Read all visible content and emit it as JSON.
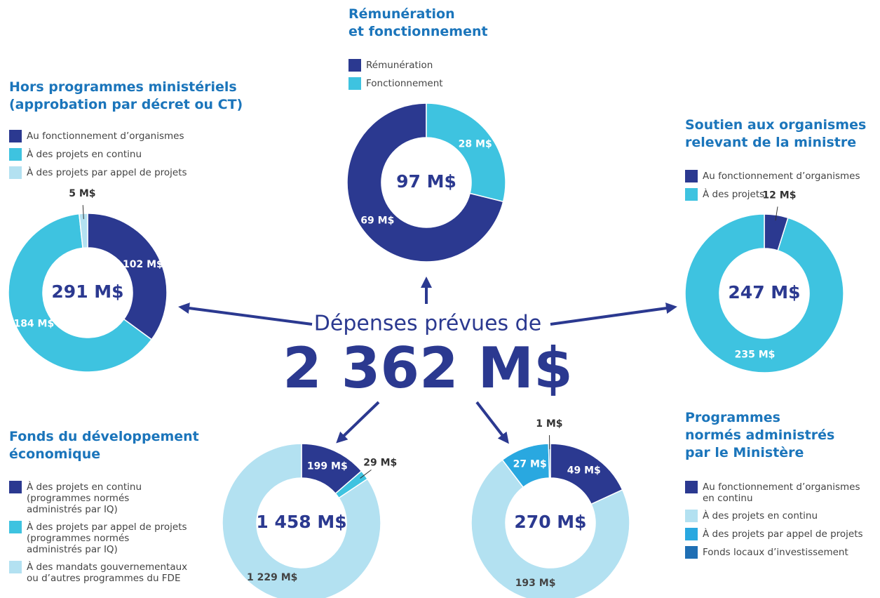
{
  "summary": {
    "label": "Dépenses prévues de",
    "total": "2 362 M$"
  },
  "chart_data": [
    {
      "type": "pie",
      "donut": true,
      "title": "Hors programmes ministériels\n(approbation par décret ou CT)",
      "center_label": "291 M$",
      "categories": [
        "Au fonctionnement d’organismes",
        "À des projets en continu",
        "À des projets par appel de projets"
      ],
      "values": [
        102,
        184,
        5
      ],
      "value_labels": [
        "102 M$",
        "184 M$",
        "5 M$"
      ],
      "colors": [
        "#2b3990",
        "#3ec3e0",
        "#b3e1f1"
      ]
    },
    {
      "type": "pie",
      "donut": true,
      "title": "Rémunération\net fonctionnement",
      "center_label": "97 M$",
      "direction": "counterclockwise",
      "categories": [
        "Rémunération",
        "Fonctionnement"
      ],
      "values": [
        69,
        28
      ],
      "value_labels": [
        "69 M$",
        "28 M$"
      ],
      "colors": [
        "#2b3990",
        "#3ec3e0"
      ]
    },
    {
      "type": "pie",
      "donut": true,
      "title": "Soutien aux organismes\nrelevant de la ministre",
      "center_label": "247 M$",
      "categories": [
        "Au fonctionnement d’organismes",
        "À des projets"
      ],
      "values": [
        12,
        235
      ],
      "value_labels": [
        "12 M$",
        "235 M$"
      ],
      "colors": [
        "#2b3990",
        "#3ec3e0"
      ]
    },
    {
      "type": "pie",
      "donut": true,
      "title": "Fonds du développement\néconomique",
      "center_label": "1 458 M$",
      "categories": [
        "À des projets en continu\n(programmes normés\nadministrés par IQ)",
        "À des projets par appel de projets\n(programmes normés\nadministrés par IQ)",
        "À des mandats gouvernementaux\nou d’autres programmes du FDE"
      ],
      "values": [
        199,
        29,
        1229
      ],
      "value_labels": [
        "199 M$",
        "29 M$",
        "1 229 M$"
      ],
      "colors": [
        "#2b3990",
        "#3ec3e0",
        "#b3e1f1"
      ]
    },
    {
      "type": "pie",
      "donut": true,
      "title": "Programmes\nnormés administrés\npar le Ministère",
      "center_label": "270 M$",
      "categories": [
        "Au fonctionnement d’organismes\nen continu",
        "À des projets en continu",
        "À des projets par appel de projets",
        "Fonds locaux d’investissement"
      ],
      "values": [
        49,
        193,
        27,
        1
      ],
      "value_labels": [
        "49 M$",
        "193 M$",
        "27 M$",
        "1 M$"
      ],
      "colors": [
        "#2b3990",
        "#b3e1f1",
        "#29a8e0",
        "#1f6fb4"
      ]
    }
  ]
}
